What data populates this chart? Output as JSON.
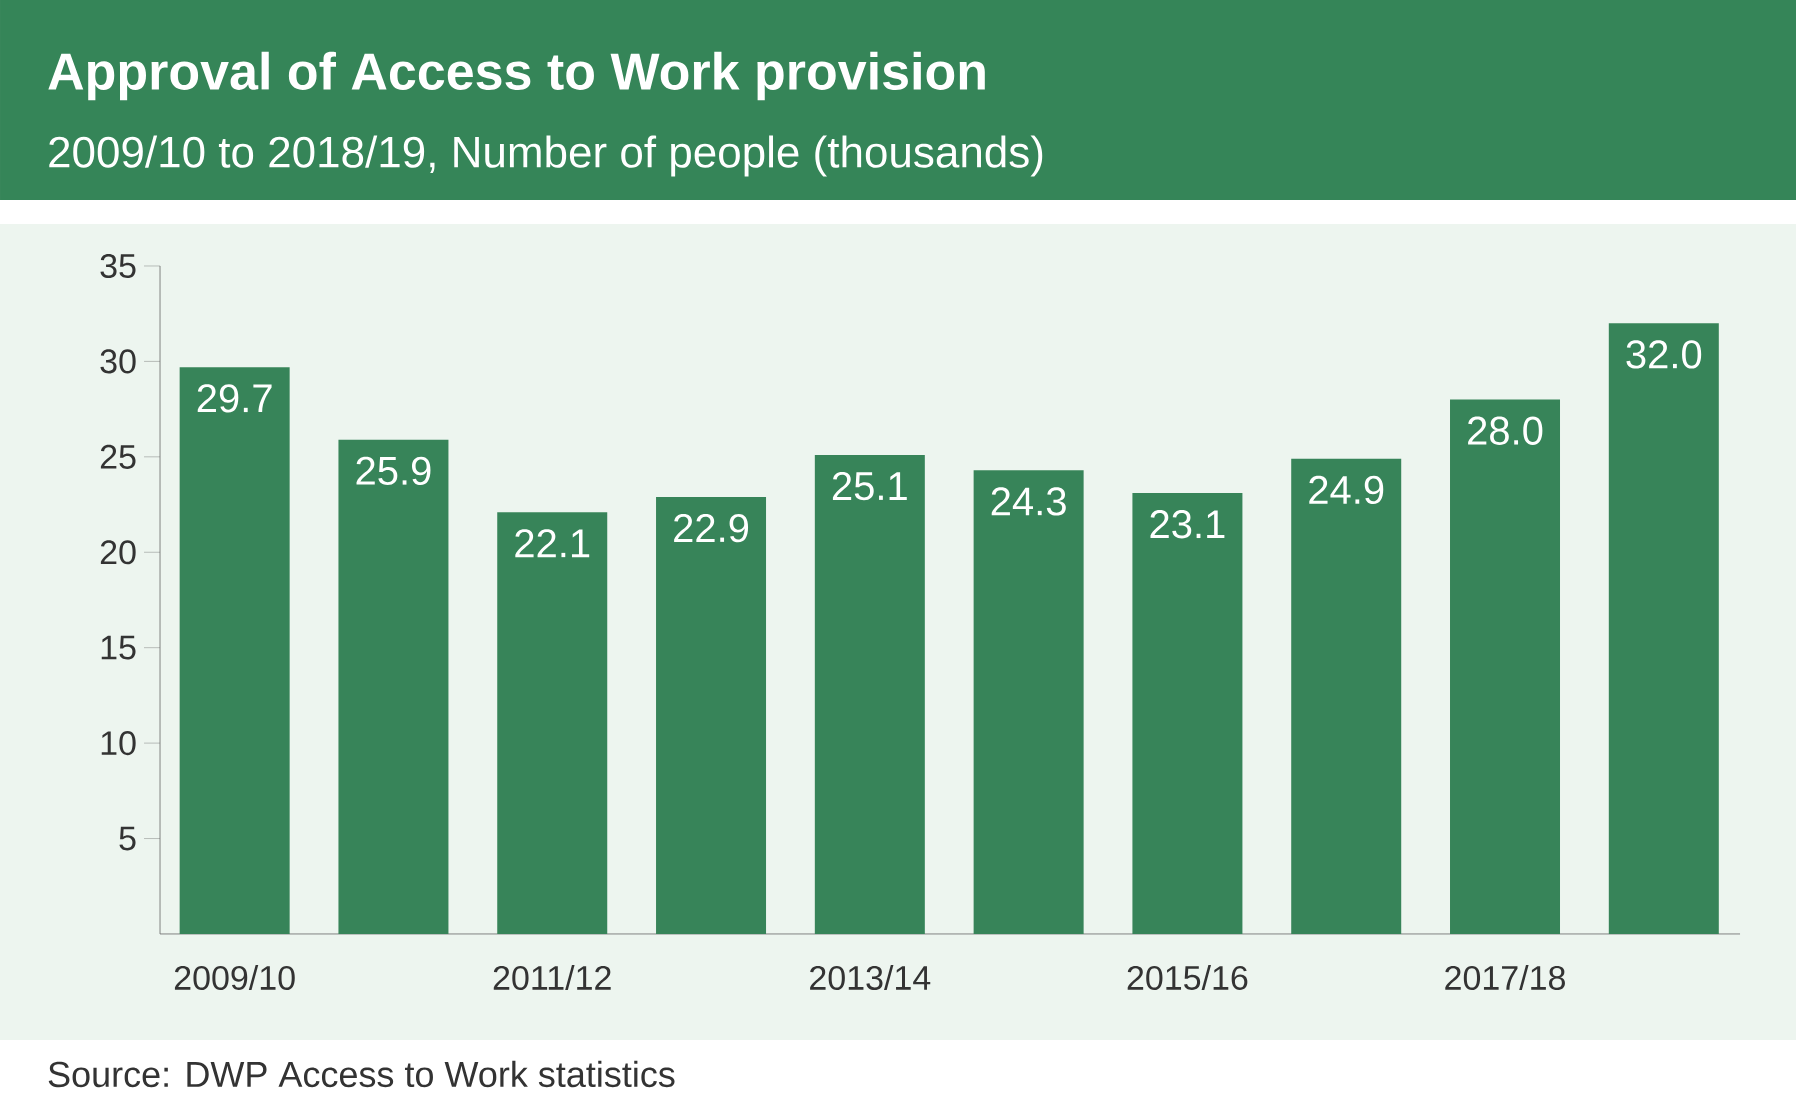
{
  "chart_data": {
    "type": "bar",
    "title": "Approval of Access to Work provision",
    "subtitle": "2009/10 to 2018/19, Number of people (thousands)",
    "categories": [
      "2009/10",
      null,
      "2011/12",
      null,
      "2013/14",
      null,
      "2015/16",
      null,
      "2017/18",
      null
    ],
    "values": [
      29.7,
      25.9,
      22.1,
      22.9,
      25.1,
      24.3,
      23.1,
      24.9,
      28.0,
      32.0
    ],
    "value_labels": [
      "29.7",
      "25.9",
      "22.1",
      "22.9",
      "25.1",
      "24.3",
      "23.1",
      "24.9",
      "28.0",
      "32.0"
    ],
    "color": "#378459",
    "ylim": [
      0,
      35
    ],
    "yticks": [
      5,
      10,
      15,
      20,
      25,
      30,
      35
    ],
    "annotations": [
      "Source: DWP Access to Work statistics"
    ]
  }
}
